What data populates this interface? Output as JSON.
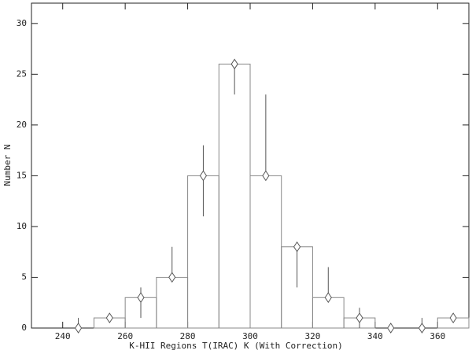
{
  "chart_data": {
    "type": "histogram",
    "xlabel": "K-HII Regions T(IRAC) K (With Correction)",
    "ylabel": "Number N",
    "bins": [
      240,
      250,
      260,
      270,
      280,
      290,
      300,
      310,
      320,
      330,
      340,
      350,
      360,
      370
    ],
    "counts": [
      0,
      1,
      3,
      5,
      15,
      26,
      15,
      8,
      3,
      1,
      0,
      0,
      1
    ],
    "color": "#888888",
    "points": {
      "x": [
        245,
        255,
        265,
        275,
        285,
        295,
        305,
        315,
        325,
        335,
        345,
        355,
        365
      ],
      "values": [
        0,
        1,
        3,
        5,
        15,
        26,
        15,
        8,
        3,
        1,
        0,
        0,
        1
      ],
      "err_low": [
        0,
        0,
        2,
        0,
        4,
        3,
        0,
        4,
        0,
        1,
        0,
        0,
        0
      ],
      "err_high": [
        1,
        0,
        1,
        3,
        3,
        0,
        8,
        0,
        3,
        1,
        0,
        1,
        0
      ],
      "color": "#555555"
    },
    "xlim": [
      230,
      370
    ],
    "ylim": [
      0,
      32
    ],
    "xticks": [
      240,
      260,
      280,
      300,
      320,
      340,
      360
    ],
    "yticks": [
      0,
      5,
      10,
      15,
      20,
      25,
      30
    ]
  }
}
